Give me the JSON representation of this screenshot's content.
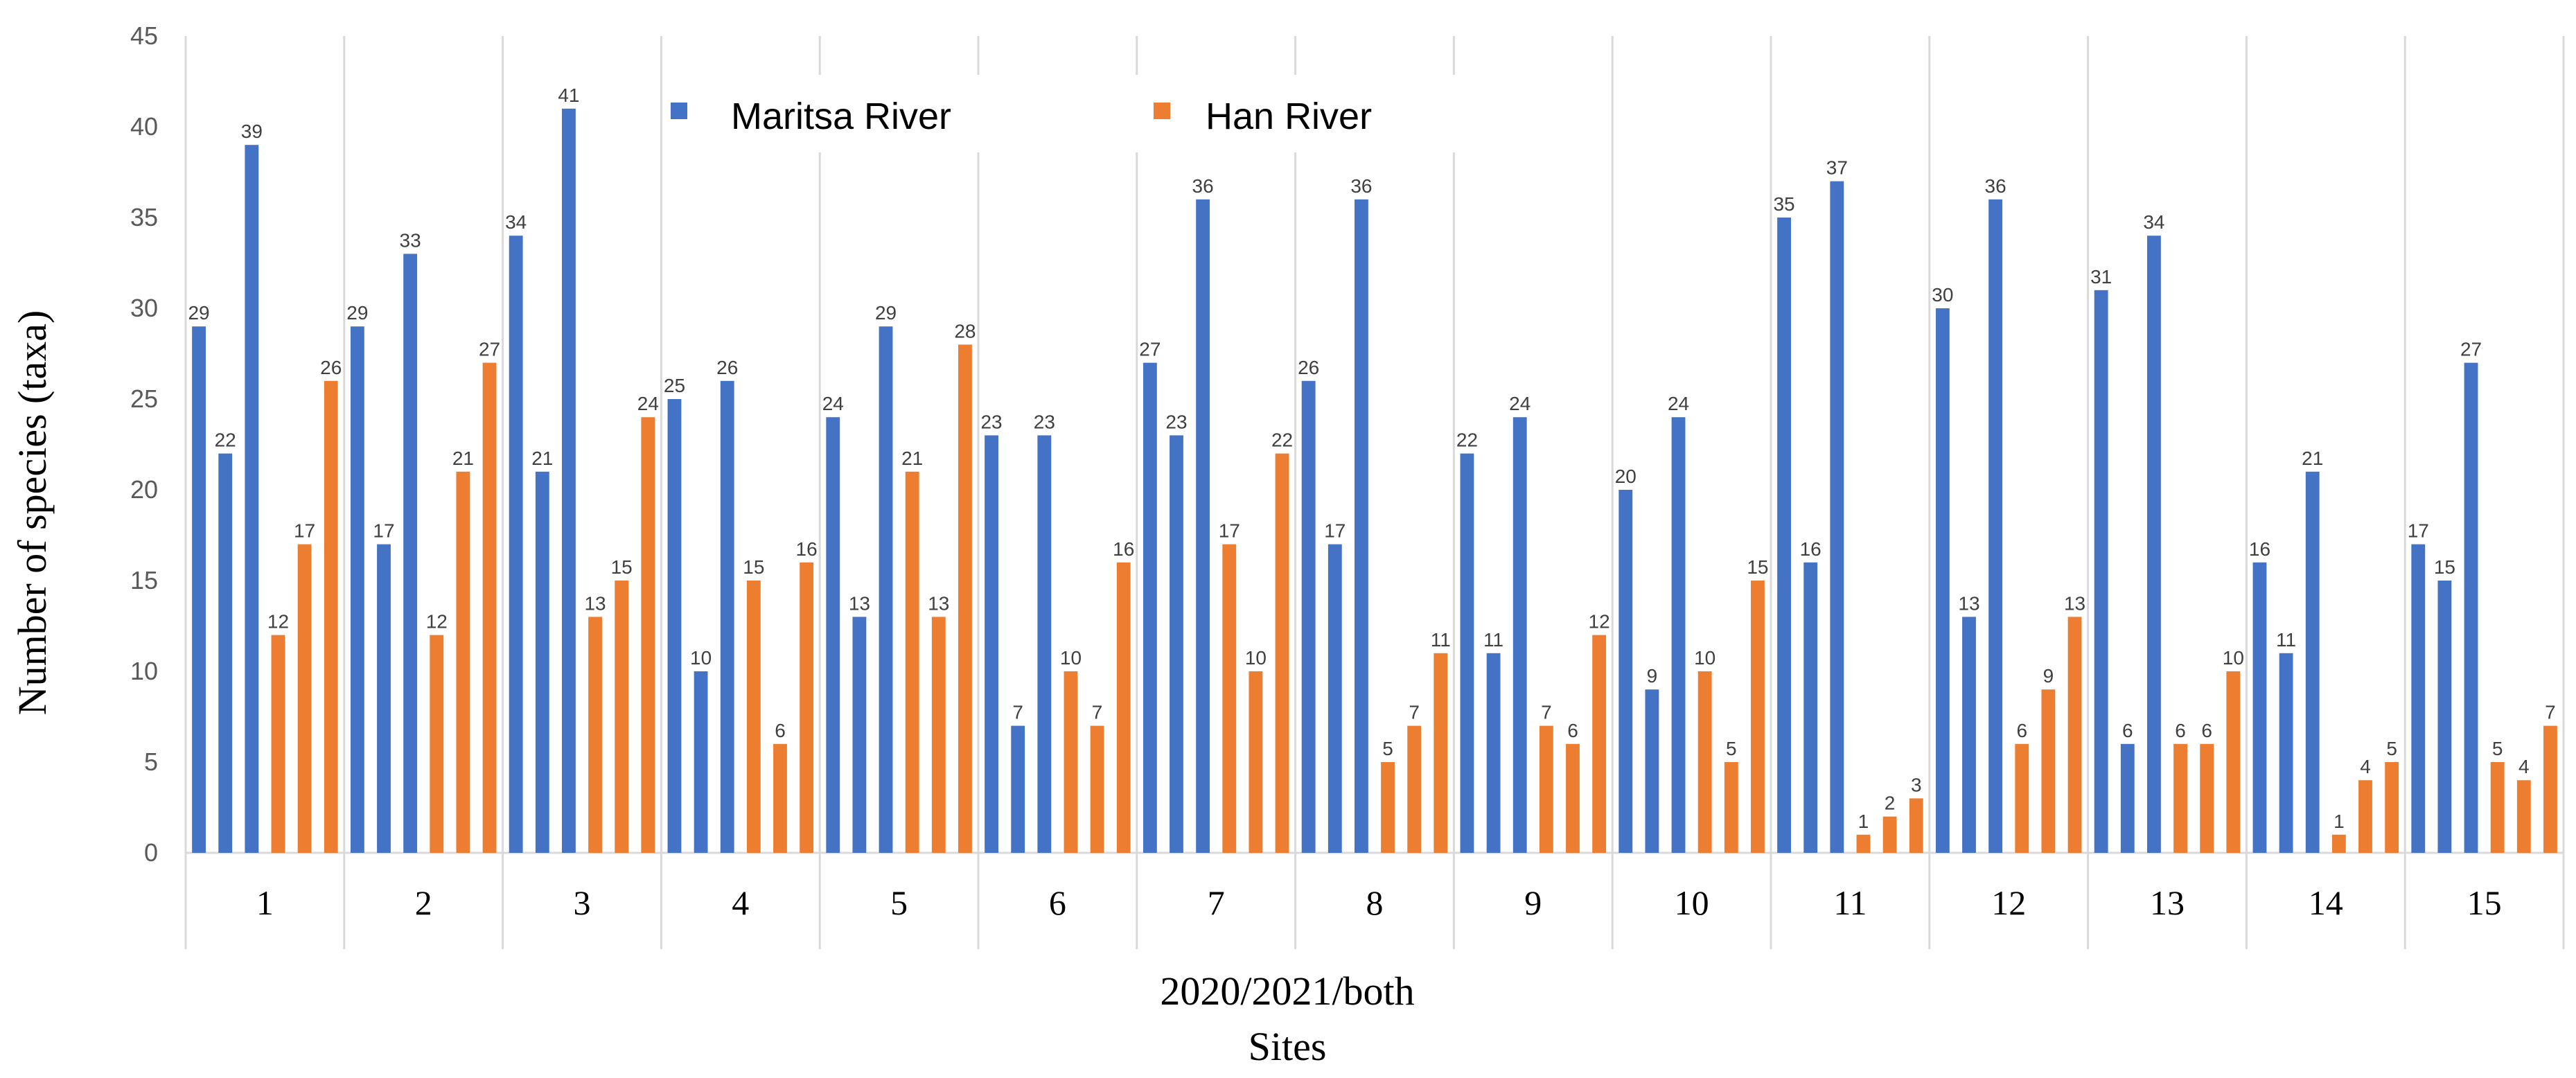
{
  "chart_data": {
    "type": "bar",
    "title": "",
    "ylabel": "Number of species (taxa)",
    "xlabel_line1": "2020/2021/both",
    "xlabel_line2": "Sites",
    "ylim": [
      0,
      45
    ],
    "yticks": [
      0,
      5,
      10,
      15,
      20,
      25,
      30,
      35,
      40,
      45
    ],
    "categories": [
      "1",
      "2",
      "3",
      "4",
      "5",
      "6",
      "7",
      "8",
      "9",
      "10",
      "11",
      "12",
      "13",
      "14",
      "15"
    ],
    "grid": "vertical separators between site groups",
    "legend_position": "top-center",
    "series": [
      {
        "name": "Maritsa River",
        "color": "#4472C4",
        "values": [
          [
            29,
            22,
            39
          ],
          [
            29,
            17,
            33
          ],
          [
            34,
            21,
            41
          ],
          [
            25,
            10,
            26
          ],
          [
            24,
            13,
            29
          ],
          [
            23,
            7,
            23
          ],
          [
            27,
            23,
            36
          ],
          [
            26,
            17,
            36
          ],
          [
            22,
            11,
            24
          ],
          [
            20,
            9,
            24
          ],
          [
            35,
            16,
            37
          ],
          [
            30,
            13,
            36
          ],
          [
            31,
            6,
            34
          ],
          [
            16,
            11,
            21
          ],
          [
            17,
            15,
            27
          ]
        ]
      },
      {
        "name": "Han River",
        "color": "#ED7D31",
        "values": [
          [
            12,
            17,
            26
          ],
          [
            12,
            21,
            27
          ],
          [
            13,
            15,
            24
          ],
          [
            15,
            6,
            16
          ],
          [
            21,
            13,
            28
          ],
          [
            10,
            7,
            16
          ],
          [
            17,
            10,
            22
          ],
          [
            5,
            7,
            11
          ],
          [
            7,
            6,
            12
          ],
          [
            10,
            5,
            15
          ],
          [
            1,
            2,
            3
          ],
          [
            6,
            9,
            13
          ],
          [
            6,
            6,
            10
          ],
          [
            1,
            4,
            5
          ],
          [
            5,
            4,
            7
          ]
        ]
      }
    ]
  }
}
